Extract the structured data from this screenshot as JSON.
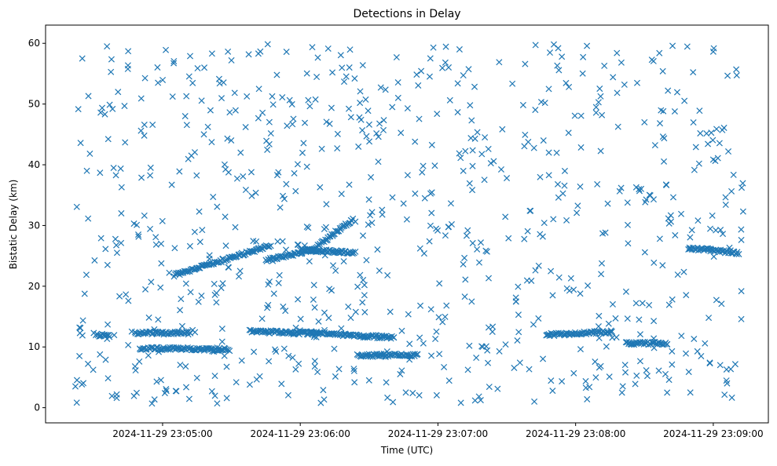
{
  "chart_data": {
    "type": "scatter",
    "title": "Detections in Delay",
    "xlabel": "Time (UTC)",
    "ylabel": "Bistatic Delay (km)",
    "marker": "x",
    "color": "#1f77b4",
    "grid": false,
    "x_axis_type": "time",
    "xlim": [
      "2024-11-29 23:04:09",
      "2024-11-29 23:09:24"
    ],
    "ylim": [
      -2.5,
      63
    ],
    "x_ticks": [
      "2024-11-29 23:05:00",
      "2024-11-29 23:06:00",
      "2024-11-29 23:07:00",
      "2024-11-29 23:08:00",
      "2024-11-29 23:09:00"
    ],
    "y_ticks": [
      0,
      10,
      20,
      30,
      40,
      50,
      60
    ],
    "x_range": [
      "2024-11-29 23:04:22",
      "2024-11-29 23:09:13"
    ],
    "delay_range": [
      0.5,
      60
    ],
    "background_detections": [
      [
        "2024-11-29 23:04:22",
        3.5
      ],
      [
        "2024-11-29 23:04:25",
        57.5
      ],
      [
        "2024-11-29 23:04:27",
        39.0
      ],
      [
        "2024-11-29 23:04:30",
        12.3
      ],
      [
        "2024-11-29 23:04:33",
        48.6
      ],
      [
        "2024-11-29 23:04:36",
        23.5
      ],
      [
        "2024-11-29 23:04:40",
        1.6
      ],
      [
        "2024-11-29 23:04:42",
        32.0
      ],
      [
        "2024-11-29 23:04:45",
        58.7
      ],
      [
        "2024-11-29 23:04:48",
        6.8
      ],
      [
        "2024-11-29 23:04:52",
        44.8
      ],
      [
        "2024-11-29 23:04:55",
        20.7
      ],
      [
        "2024-11-29 23:04:58",
        53.5
      ],
      [
        "2024-11-29 23:05:01",
        2.4
      ],
      [
        "2024-11-29 23:05:04",
        36.7
      ],
      [
        "2024-11-29 23:05:08",
        17.9
      ],
      [
        "2024-11-29 23:05:12",
        57.9
      ],
      [
        "2024-11-29 23:05:15",
        4.9
      ],
      [
        "2024-11-29 23:05:18",
        45.0
      ],
      [
        "2024-11-29 23:05:22",
        34.7
      ],
      [
        "2024-11-29 23:05:26",
        13.0
      ],
      [
        "2024-11-29 23:05:30",
        57.2
      ],
      [
        "2024-11-29 23:05:34",
        42.0
      ],
      [
        "2024-11-29 23:05:38",
        3.8
      ],
      [
        "2024-11-29 23:05:42",
        52.5
      ],
      [
        "2024-11-29 23:05:46",
        16.9
      ],
      [
        "2024-11-29 23:05:50",
        38.3
      ],
      [
        "2024-11-29 23:05:54",
        58.6
      ],
      [
        "2024-11-29 23:05:58",
        6.3
      ],
      [
        "2024-11-29 23:06:02",
        46.9
      ],
      [
        "2024-11-29 23:06:06",
        20.2
      ],
      [
        "2024-11-29 23:06:10",
        2.9
      ],
      [
        "2024-11-29 23:06:14",
        55.2
      ],
      [
        "2024-11-29 23:06:18",
        35.2
      ],
      [
        "2024-11-29 23:06:22",
        14.8
      ],
      [
        "2024-11-29 23:06:26",
        50.2
      ],
      [
        "2024-11-29 23:06:30",
        4.5
      ],
      [
        "2024-11-29 23:06:34",
        40.5
      ],
      [
        "2024-11-29 23:06:38",
        21.8
      ],
      [
        "2024-11-29 23:06:42",
        57.7
      ],
      [
        "2024-11-29 23:06:46",
        2.5
      ],
      [
        "2024-11-29 23:06:50",
        43.8
      ],
      [
        "2024-11-29 23:06:54",
        25.4
      ],
      [
        "2024-11-29 23:06:58",
        59.3
      ],
      [
        "2024-11-29 23:07:02",
        14.1
      ],
      [
        "2024-11-29 23:07:06",
        30.2
      ],
      [
        "2024-11-29 23:07:10",
        0.8
      ],
      [
        "2024-11-29 23:07:14",
        49.8
      ],
      [
        "2024-11-29 23:07:18",
        23.9
      ],
      [
        "2024-11-29 23:07:22",
        42.6
      ],
      [
        "2024-11-29 23:07:26",
        3.1
      ],
      [
        "2024-11-29 23:07:30",
        37.8
      ],
      [
        "2024-11-29 23:07:34",
        17.5
      ],
      [
        "2024-11-29 23:07:38",
        56.6
      ],
      [
        "2024-11-29 23:07:42",
        1.0
      ],
      [
        "2024-11-29 23:07:46",
        44.0
      ],
      [
        "2024-11-29 23:07:50",
        18.5
      ],
      [
        "2024-11-29 23:07:54",
        57.8
      ],
      [
        "2024-11-29 23:07:58",
        21.3
      ],
      [
        "2024-11-29 23:08:02",
        36.4
      ],
      [
        "2024-11-29 23:08:06",
        3.4
      ],
      [
        "2024-11-29 23:08:10",
        50.3
      ],
      [
        "2024-11-29 23:08:14",
        33.6
      ],
      [
        "2024-11-29 23:08:18",
        58.4
      ],
      [
        "2024-11-29 23:08:22",
        19.1
      ],
      [
        "2024-11-29 23:08:26",
        3.9
      ],
      [
        "2024-11-29 23:08:30",
        47.0
      ],
      [
        "2024-11-29 23:08:34",
        34.3
      ],
      [
        "2024-11-29 23:08:38",
        55.4
      ],
      [
        "2024-11-29 23:08:42",
        7.1
      ],
      [
        "2024-11-29 23:08:46",
        31.9
      ],
      [
        "2024-11-29 23:08:50",
        2.5
      ],
      [
        "2024-11-29 23:08:54",
        48.9
      ],
      [
        "2024-11-29 23:08:58",
        14.8
      ],
      [
        "2024-11-29 23:09:02",
        41.1
      ],
      [
        "2024-11-29 23:09:06",
        4.0
      ],
      [
        "2024-11-29 23:09:10",
        55.7
      ],
      [
        "2024-11-29 23:09:13",
        32.3
      ]
    ],
    "tracks": [
      {
        "x": [
          "2024-11-29 23:04:31",
          "2024-11-29 23:04:37"
        ],
        "y": [
          12.0,
          11.8
        ]
      },
      {
        "x": [
          "2024-11-29 23:04:48",
          "2024-11-29 23:05:12"
        ],
        "y": [
          12.3,
          12.3
        ]
      },
      {
        "x": [
          "2024-11-29 23:04:50",
          "2024-11-29 23:05:29"
        ],
        "y": [
          9.8,
          9.6
        ]
      },
      {
        "x": [
          "2024-11-29 23:05:05",
          "2024-11-29 23:05:47"
        ],
        "y": [
          21.8,
          26.7
        ]
      },
      {
        "x": [
          "2024-11-29 23:05:38",
          "2024-11-29 23:06:07"
        ],
        "y": [
          12.6,
          12.2
        ]
      },
      {
        "x": [
          "2024-11-29 23:05:45",
          "2024-11-29 23:06:06"
        ],
        "y": [
          24.3,
          26.0
        ]
      },
      {
        "x": [
          "2024-11-29 23:06:00",
          "2024-11-29 23:06:24"
        ],
        "y": [
          26.0,
          25.5
        ]
      },
      {
        "x": [
          "2024-11-29 23:06:04",
          "2024-11-29 23:06:41"
        ],
        "y": [
          12.4,
          11.5
        ]
      },
      {
        "x": [
          "2024-11-29 23:06:05",
          "2024-11-29 23:06:23"
        ],
        "y": [
          26.0,
          31.0
        ]
      },
      {
        "x": [
          "2024-11-29 23:06:25",
          "2024-11-29 23:06:51"
        ],
        "y": [
          8.6,
          8.7
        ]
      },
      {
        "x": [
          "2024-11-29 23:07:47",
          "2024-11-29 23:08:16"
        ],
        "y": [
          12.0,
          12.5
        ]
      },
      {
        "x": [
          "2024-11-29 23:08:22",
          "2024-11-29 23:08:40"
        ],
        "y": [
          10.6,
          10.6
        ]
      },
      {
        "x": [
          "2024-11-29 23:08:49",
          "2024-11-29 23:09:11"
        ],
        "y": [
          26.3,
          25.5
        ]
      }
    ]
  }
}
